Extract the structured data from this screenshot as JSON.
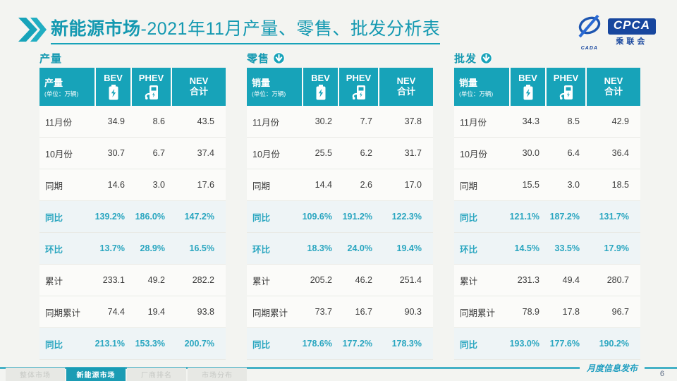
{
  "title": {
    "bold": "新能源市场",
    "rest": "-2021年11月产量、零售、批发分析表"
  },
  "logo": {
    "cpca": "CPCA",
    "sub": "乘联会",
    "cada": "CADA"
  },
  "columns": {
    "bev": "BEV",
    "phev": "PHEV",
    "nev_line1": "NEV",
    "nev_line2": "合计"
  },
  "unit_note": "(单位：万辆)",
  "tables": [
    {
      "section": "产量",
      "label_header": "产量",
      "rows": [
        {
          "label": "11月份",
          "bev": "34.9",
          "phev": "8.6",
          "nev": "43.5",
          "hl": false
        },
        {
          "label": "10月份",
          "bev": "30.7",
          "phev": "6.7",
          "nev": "37.4",
          "hl": false
        },
        {
          "label": "同期",
          "bev": "14.6",
          "phev": "3.0",
          "nev": "17.6",
          "hl": false
        },
        {
          "label": "同比",
          "bev": "139.2%",
          "phev": "186.0%",
          "nev": "147.2%",
          "hl": true
        },
        {
          "label": "环比",
          "bev": "13.7%",
          "phev": "28.9%",
          "nev": "16.5%",
          "hl": true
        },
        {
          "label": "累计",
          "bev": "233.1",
          "phev": "49.2",
          "nev": "282.2",
          "hl": false
        },
        {
          "label": "同期累计",
          "bev": "74.4",
          "phev": "19.4",
          "nev": "93.8",
          "hl": false
        },
        {
          "label": "同比",
          "bev": "213.1%",
          "phev": "153.3%",
          "nev": "200.7%",
          "hl": true
        }
      ]
    },
    {
      "section": "零售",
      "label_header": "销量",
      "rows": [
        {
          "label": "11月份",
          "bev": "30.2",
          "phev": "7.7",
          "nev": "37.8",
          "hl": false
        },
        {
          "label": "10月份",
          "bev": "25.5",
          "phev": "6.2",
          "nev": "31.7",
          "hl": false
        },
        {
          "label": "同期",
          "bev": "14.4",
          "phev": "2.6",
          "nev": "17.0",
          "hl": false
        },
        {
          "label": "同比",
          "bev": "109.6%",
          "phev": "191.2%",
          "nev": "122.3%",
          "hl": true
        },
        {
          "label": "环比",
          "bev": "18.3%",
          "phev": "24.0%",
          "nev": "19.4%",
          "hl": true
        },
        {
          "label": "累计",
          "bev": "205.2",
          "phev": "46.2",
          "nev": "251.4",
          "hl": false
        },
        {
          "label": "同期累计",
          "bev": "73.7",
          "phev": "16.7",
          "nev": "90.3",
          "hl": false
        },
        {
          "label": "同比",
          "bev": "178.6%",
          "phev": "177.2%",
          "nev": "178.3%",
          "hl": true
        }
      ]
    },
    {
      "section": "批发",
      "label_header": "销量",
      "rows": [
        {
          "label": "11月份",
          "bev": "34.3",
          "phev": "8.5",
          "nev": "42.9",
          "hl": false
        },
        {
          "label": "10月份",
          "bev": "30.0",
          "phev": "6.4",
          "nev": "36.4",
          "hl": false
        },
        {
          "label": "同期",
          "bev": "15.5",
          "phev": "3.0",
          "nev": "18.5",
          "hl": false
        },
        {
          "label": "同比",
          "bev": "121.1%",
          "phev": "187.2%",
          "nev": "131.7%",
          "hl": true
        },
        {
          "label": "环比",
          "bev": "14.5%",
          "phev": "33.5%",
          "nev": "17.9%",
          "hl": true
        },
        {
          "label": "累计",
          "bev": "231.3",
          "phev": "49.4",
          "nev": "280.7",
          "hl": false
        },
        {
          "label": "同期累计",
          "bev": "78.9",
          "phev": "17.8",
          "nev": "96.7",
          "hl": false
        },
        {
          "label": "同比",
          "bev": "193.0%",
          "phev": "177.6%",
          "nev": "190.2%",
          "hl": true
        }
      ]
    }
  ],
  "footer": {
    "tabs": [
      {
        "label": "整体市场",
        "active": false
      },
      {
        "label": "新能源市场",
        "active": true
      },
      {
        "label": "厂商排名",
        "active": false
      },
      {
        "label": "市场分布",
        "active": false
      }
    ],
    "release_label": "月度信息发布",
    "page": "6"
  },
  "colors": {
    "teal": "#17a3b9",
    "dark_blue": "#17469e",
    "highlight_text": "#2aa6c0"
  }
}
